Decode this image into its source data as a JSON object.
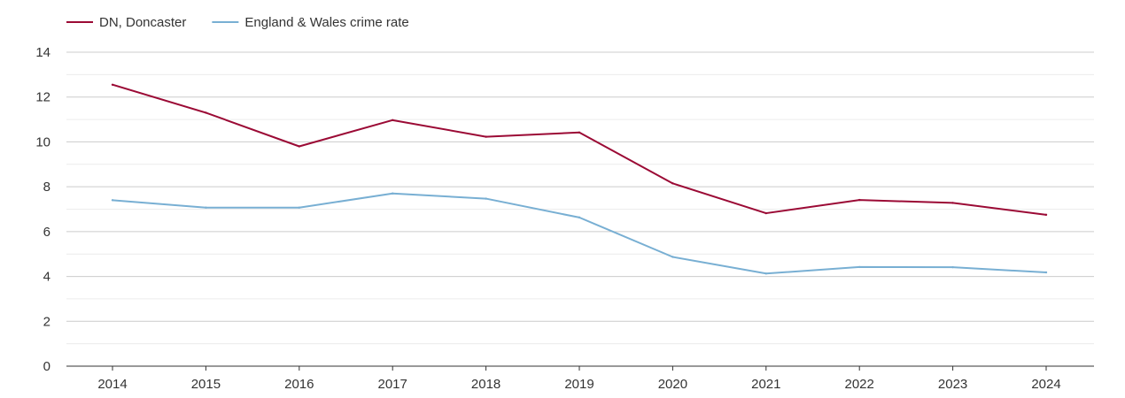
{
  "chart_data": {
    "type": "line",
    "x": [
      "2014",
      "2015",
      "2016",
      "2017",
      "2018",
      "2019",
      "2020",
      "2021",
      "2022",
      "2023",
      "2024"
    ],
    "series": [
      {
        "name": "DN, Doncaster",
        "color": "#9b0a35",
        "values": [
          12.55,
          11.3,
          9.8,
          10.97,
          10.23,
          10.42,
          8.15,
          6.82,
          7.41,
          7.28,
          6.75
        ]
      },
      {
        "name": "England & Wales crime rate",
        "color": "#78afd3",
        "values": [
          7.4,
          7.07,
          7.07,
          7.7,
          7.47,
          6.63,
          4.87,
          4.13,
          4.42,
          4.41,
          4.18
        ]
      }
    ],
    "yticks": [
      0,
      2,
      4,
      6,
      8,
      10,
      12,
      14
    ],
    "ylim": [
      0,
      14
    ],
    "grid": true,
    "legend_position": "top-left"
  }
}
